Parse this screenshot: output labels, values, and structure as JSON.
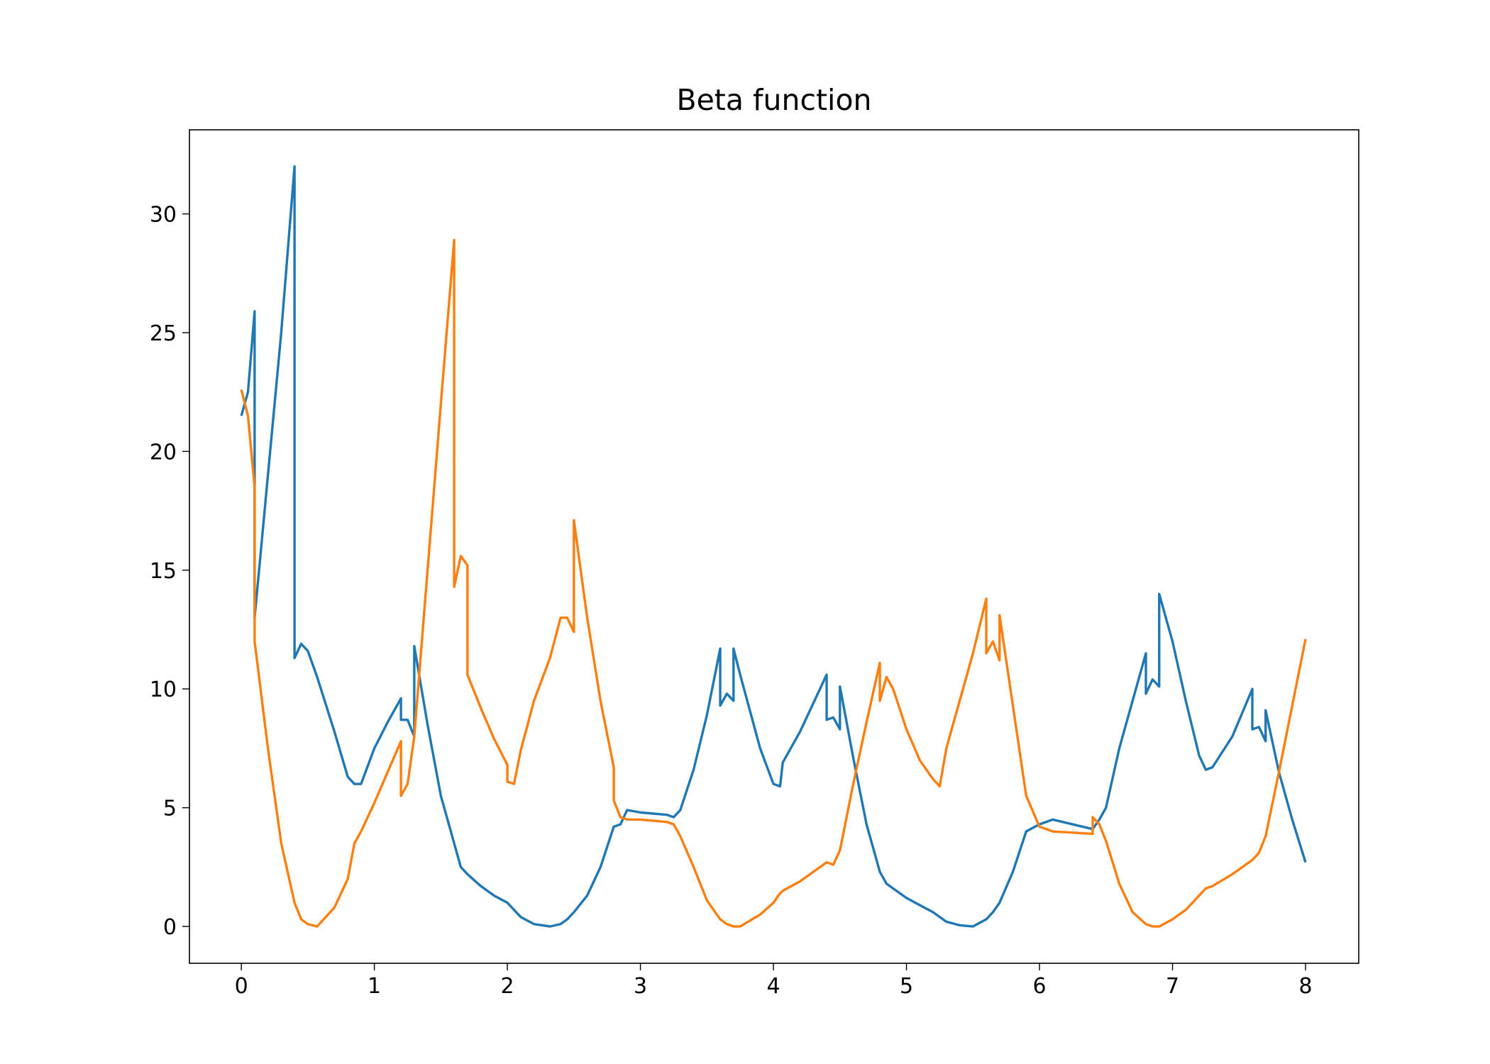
{
  "chart_data": {
    "type": "line",
    "title": "Beta function",
    "x": [
      0,
      0.05,
      0.1,
      0.1,
      0.2,
      0.3,
      0.4,
      0.4,
      0.45,
      0.5,
      0.57,
      0.7,
      0.8,
      0.85,
      0.9,
      1.0,
      1.1,
      1.2,
      1.2,
      1.25,
      1.3,
      1.3,
      1.4,
      1.5,
      1.6,
      1.6,
      1.65,
      1.7,
      1.7,
      1.8,
      1.9,
      2.0,
      2.0,
      2.05,
      2.1,
      2.2,
      2.32,
      2.4,
      2.45,
      2.5,
      2.5,
      2.6,
      2.7,
      2.8,
      2.8,
      2.85,
      2.9,
      3.0,
      3.2,
      3.25,
      3.3,
      3.4,
      3.5,
      3.6,
      3.6,
      3.65,
      3.7,
      3.7,
      3.75,
      3.9,
      4.0,
      4.05,
      4.07,
      4.2,
      4.4,
      4.4,
      4.45,
      4.5,
      4.5,
      4.6,
      4.7,
      4.8,
      4.8,
      4.85,
      4.9,
      5.0,
      5.1,
      5.2,
      5.25,
      5.3,
      5.4,
      5.5,
      5.6,
      5.6,
      5.65,
      5.7,
      5.7,
      5.8,
      5.9,
      6.0,
      6.1,
      6.4,
      6.4,
      6.45,
      6.5,
      6.6,
      6.7,
      6.8,
      6.8,
      6.85,
      6.9,
      6.9,
      7.0,
      7.1,
      7.2,
      7.25,
      7.3,
      7.45,
      7.6,
      7.6,
      7.65,
      7.7,
      7.7,
      7.8,
      7.9,
      8.0
    ],
    "series": [
      {
        "color": "#1f77b4",
        "values": [
          21.5,
          22.5,
          25.9,
          13,
          19,
          25,
          32,
          11.3,
          11.9,
          11.6,
          10.5,
          8.2,
          6.3,
          6.0,
          6.0,
          7.5,
          8.6,
          9.6,
          8.7,
          8.7,
          8.0,
          11.8,
          8.5,
          5.5,
          3.5,
          3.5,
          2.5,
          2.2,
          2.2,
          1.7,
          1.3,
          1.0,
          1.0,
          0.7,
          0.4,
          0.1,
          0,
          0.1,
          0.3,
          0.6,
          0.6,
          1.3,
          2.5,
          4.2,
          4.2,
          4.3,
          4.9,
          4.8,
          4.7,
          4.6,
          4.9,
          6.6,
          8.9,
          11.7,
          9.3,
          9.8,
          9.5,
          11.7,
          10.6,
          7.5,
          6.0,
          5.9,
          6.9,
          8.2,
          10.6,
          8.7,
          8.8,
          8.3,
          10.1,
          7.1,
          4.3,
          2.3,
          2.3,
          1.8,
          1.6,
          1.2,
          0.9,
          0.6,
          0.4,
          0.2,
          0.05,
          0,
          0.3,
          0.3,
          0.6,
          1.0,
          1.0,
          2.3,
          4.0,
          4.3,
          4.5,
          4.1,
          4.1,
          4.5,
          5.0,
          7.5,
          9.5,
          11.5,
          9.8,
          10.4,
          10.1,
          14.0,
          12.0,
          9.5,
          7.2,
          6.6,
          6.7,
          8.0,
          10.0,
          8.3,
          8.4,
          7.8,
          9.1,
          6.5,
          4.5,
          2.7
        ]
      },
      {
        "color": "#ff7f0e",
        "values": [
          22.6,
          21.5,
          18.5,
          12,
          7.5,
          3.5,
          1.0,
          1.0,
          0.3,
          0.1,
          0,
          0.8,
          2.0,
          3.5,
          4.0,
          5.2,
          6.5,
          7.8,
          5.5,
          6.0,
          8.0,
          8.0,
          15,
          22,
          28.9,
          14.3,
          15.6,
          15.2,
          10.6,
          9.2,
          7.9,
          6.8,
          6.1,
          6.0,
          7.4,
          9.5,
          11.3,
          13.0,
          13.0,
          12.4,
          17.1,
          13,
          9.5,
          6.7,
          5.3,
          4.6,
          4.5,
          4.5,
          4.4,
          4.3,
          3.8,
          2.5,
          1.1,
          0.3,
          0.3,
          0.1,
          0,
          0,
          0,
          0.5,
          1.0,
          1.4,
          1.5,
          1.9,
          2.7,
          2.7,
          2.6,
          3.2,
          3.2,
          6.0,
          8.6,
          11.1,
          9.5,
          10.5,
          10.0,
          8.3,
          7.0,
          6.2,
          5.9,
          7.5,
          9.5,
          11.5,
          13.8,
          11.5,
          12.0,
          11.2,
          13.1,
          9.3,
          5.5,
          4.2,
          4.0,
          3.9,
          4.6,
          4.3,
          3.6,
          1.8,
          0.6,
          0.1,
          0.1,
          0,
          0,
          0,
          0.3,
          0.7,
          1.3,
          1.6,
          1.7,
          2.2,
          2.8,
          2.8,
          3.1,
          3.8,
          3.8,
          6.5,
          9.3,
          12.1
        ]
      }
    ],
    "xlim": [
      -0.39,
      8.4
    ],
    "ylim": [
      -1.55,
      33.54
    ],
    "xticks": [
      0,
      1,
      2,
      3,
      4,
      5,
      6,
      7,
      8
    ],
    "yticks": [
      0,
      5,
      10,
      15,
      20,
      25,
      30
    ]
  }
}
